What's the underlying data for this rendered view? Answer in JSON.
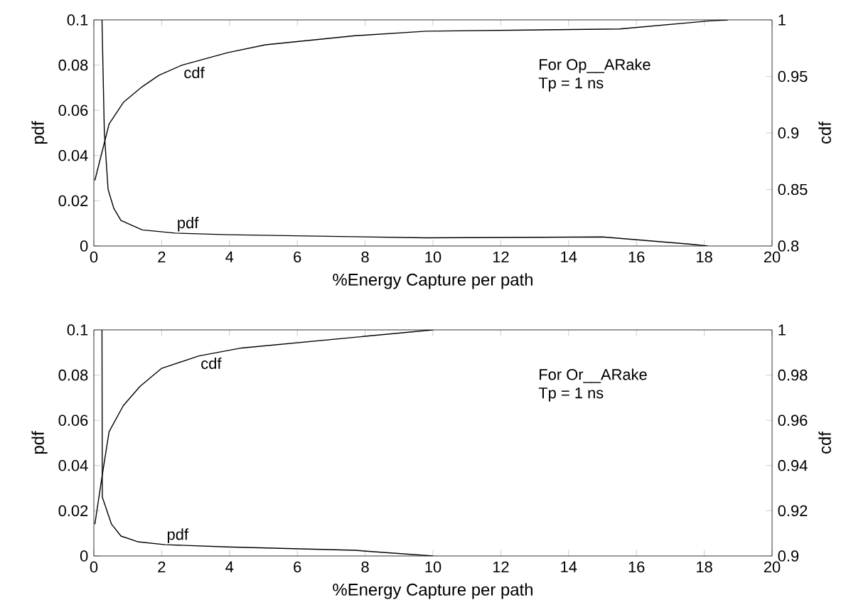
{
  "chart_data": [
    {
      "type": "line",
      "xlabel": "%Energy Capture per path",
      "ylabel": "pdf",
      "y2label": "cdf",
      "annotations": [
        "For Op__ARake",
        "Tp = 1 ns"
      ],
      "xlim": [
        0,
        20
      ],
      "xticks": [
        0,
        2,
        4,
        6,
        8,
        10,
        12,
        14,
        16,
        18,
        20
      ],
      "ylim": [
        0,
        0.1
      ],
      "yticks": [
        0,
        0.02,
        0.04,
        0.06,
        0.08,
        0.1
      ],
      "y2lim": [
        0.8,
        1
      ],
      "y2ticks": [
        0.8,
        0.85,
        0.9,
        0.95,
        1
      ],
      "series": [
        {
          "name": "cdf",
          "axis": "y2",
          "color": "#000000",
          "x": [
            0.03,
            0.45,
            0.87,
            1.43,
            1.92,
            2.6,
            3.94,
            5.06,
            7.7,
            9.8,
            15.5,
            18.1,
            18.7
          ],
          "values": [
            0.858,
            0.908,
            0.927,
            0.941,
            0.951,
            0.96,
            0.971,
            0.978,
            0.986,
            0.99,
            0.992,
            0.999,
            1.0
          ]
        },
        {
          "name": "pdf",
          "color": "#000000",
          "x": [
            0.24,
            0.31,
            0.42,
            0.59,
            0.8,
            1.43,
            2.4,
            3.94,
            9.8,
            15,
            17.6,
            18.1
          ],
          "values": [
            0.1,
            0.05,
            0.025,
            0.0166,
            0.0113,
            0.0071,
            0.0057,
            0.005,
            0.0036,
            0.004,
            0.0008,
            0
          ]
        }
      ]
    },
    {
      "type": "line",
      "xlabel": "%Energy Capture per path",
      "ylabel": "pdf",
      "y2label": "cdf",
      "annotations": [
        "For Or__ARake",
        "Tp = 1 ns"
      ],
      "xlim": [
        0,
        20
      ],
      "xticks": [
        0,
        2,
        4,
        6,
        8,
        10,
        12,
        14,
        16,
        18,
        20
      ],
      "ylim": [
        0,
        0.1
      ],
      "yticks": [
        0,
        0.02,
        0.04,
        0.06,
        0.08,
        0.1
      ],
      "y2lim": [
        0.9,
        1
      ],
      "y2ticks": [
        0.9,
        0.92,
        0.94,
        0.96,
        0.98,
        1
      ],
      "series": [
        {
          "name": "cdf",
          "axis": "y2",
          "color": "#000000",
          "x": [
            0.03,
            0.24,
            0.45,
            0.87,
            1.36,
            2.0,
            3.1,
            4.36,
            10
          ],
          "values": [
            0.914,
            0.935,
            0.955,
            0.9665,
            0.975,
            0.983,
            0.9885,
            0.992,
            1.0
          ]
        },
        {
          "name": "pdf",
          "color": "#000000",
          "x": [
            0.24,
            0.25,
            0.52,
            0.8,
            1.29,
            2.1,
            3.9,
            7.7,
            10
          ],
          "values": [
            0.1,
            0.026,
            0.0141,
            0.0088,
            0.0063,
            0.005,
            0.004,
            0.0025,
            0
          ]
        }
      ]
    }
  ]
}
